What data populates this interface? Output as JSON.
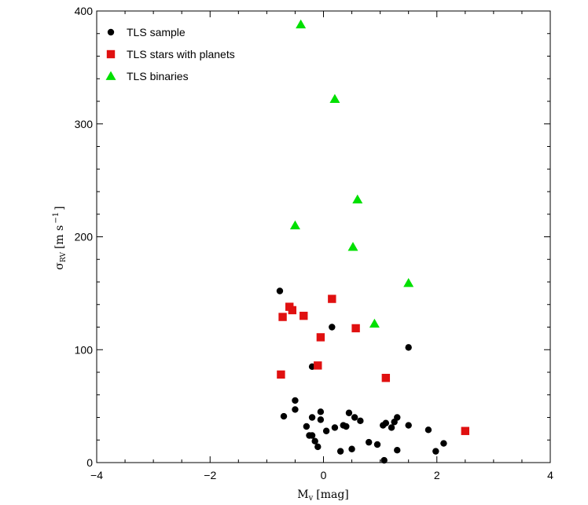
{
  "chart_data": {
    "type": "scatter",
    "xlabel": "M",
    "xlabel_sub": "v",
    "xlabel_unit": "[mag]",
    "ylabel": "σ",
    "ylabel_sub": "RV",
    "ylabel_unit": "[m s",
    "ylabel_exp": "−1",
    "ylabel_close": "]",
    "xlim": [
      -4,
      4
    ],
    "ylim": [
      0,
      400
    ],
    "xticks": [
      -4,
      -2,
      0,
      2,
      4
    ],
    "yticks": [
      0,
      100,
      200,
      300,
      400
    ],
    "legend_position": "top-left",
    "series": [
      {
        "name": "TLS sample",
        "marker": "circle",
        "color": "#000000",
        "points": [
          [
            -0.77,
            152
          ],
          [
            -0.7,
            41
          ],
          [
            -0.5,
            55
          ],
          [
            -0.5,
            47
          ],
          [
            -0.3,
            32
          ],
          [
            -0.25,
            24
          ],
          [
            -0.2,
            40
          ],
          [
            -0.15,
            19
          ],
          [
            -0.1,
            14
          ],
          [
            -0.05,
            38
          ],
          [
            -0.05,
            45
          ],
          [
            0.05,
            28
          ],
          [
            -0.2,
            24
          ],
          [
            0.15,
            120
          ],
          [
            0.2,
            31
          ],
          [
            -0.2,
            85
          ],
          [
            0.3,
            10
          ],
          [
            0.35,
            33
          ],
          [
            0.4,
            32
          ],
          [
            0.45,
            44
          ],
          [
            0.5,
            12
          ],
          [
            0.55,
            40
          ],
          [
            0.65,
            37
          ],
          [
            0.8,
            18
          ],
          [
            0.95,
            16
          ],
          [
            1.05,
            33
          ],
          [
            1.1,
            35
          ],
          [
            1.2,
            31
          ],
          [
            1.25,
            36
          ],
          [
            1.3,
            40
          ],
          [
            1.3,
            11
          ],
          [
            1.5,
            102
          ],
          [
            1.5,
            33
          ],
          [
            1.85,
            29
          ],
          [
            1.98,
            10
          ],
          [
            2.12,
            17
          ],
          [
            1.07,
            2
          ]
        ]
      },
      {
        "name": "TLS stars with planets",
        "marker": "square",
        "color": "#e01010",
        "points": [
          [
            -0.75,
            78
          ],
          [
            -0.72,
            129
          ],
          [
            -0.6,
            138
          ],
          [
            -0.55,
            135
          ],
          [
            -0.35,
            130
          ],
          [
            -0.1,
            86
          ],
          [
            -0.05,
            111
          ],
          [
            0.15,
            145
          ],
          [
            0.57,
            119
          ],
          [
            1.1,
            75
          ],
          [
            2.5,
            28
          ]
        ]
      },
      {
        "name": "TLS binaries",
        "marker": "triangle",
        "color": "#00e000",
        "points": [
          [
            -0.4,
            388
          ],
          [
            0.2,
            322
          ],
          [
            0.6,
            233
          ],
          [
            -0.5,
            210
          ],
          [
            0.52,
            191
          ],
          [
            1.5,
            159
          ],
          [
            0.9,
            123
          ]
        ]
      }
    ]
  }
}
